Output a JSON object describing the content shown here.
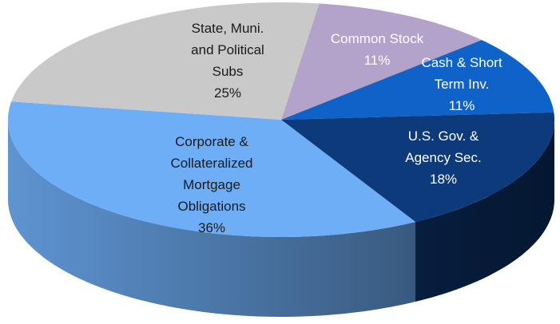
{
  "chart_data": {
    "type": "pie",
    "categories": [
      "Common Stock",
      "Cash & Short Term Inv.",
      "U.S. Gov. & Agency Sec.",
      "Corporate & Collateralized Mortgage Obligations",
      "State, Muni. and Political Subs"
    ],
    "values": [
      11,
      11,
      18,
      36,
      25
    ],
    "value_labels": [
      "11%",
      "11%",
      "18%",
      "36%",
      "25%"
    ],
    "colors": [
      "#b3a2c9",
      "#0f62c8",
      "#0c3a7a",
      "#6eaef7",
      "#c9c9c9"
    ]
  }
}
